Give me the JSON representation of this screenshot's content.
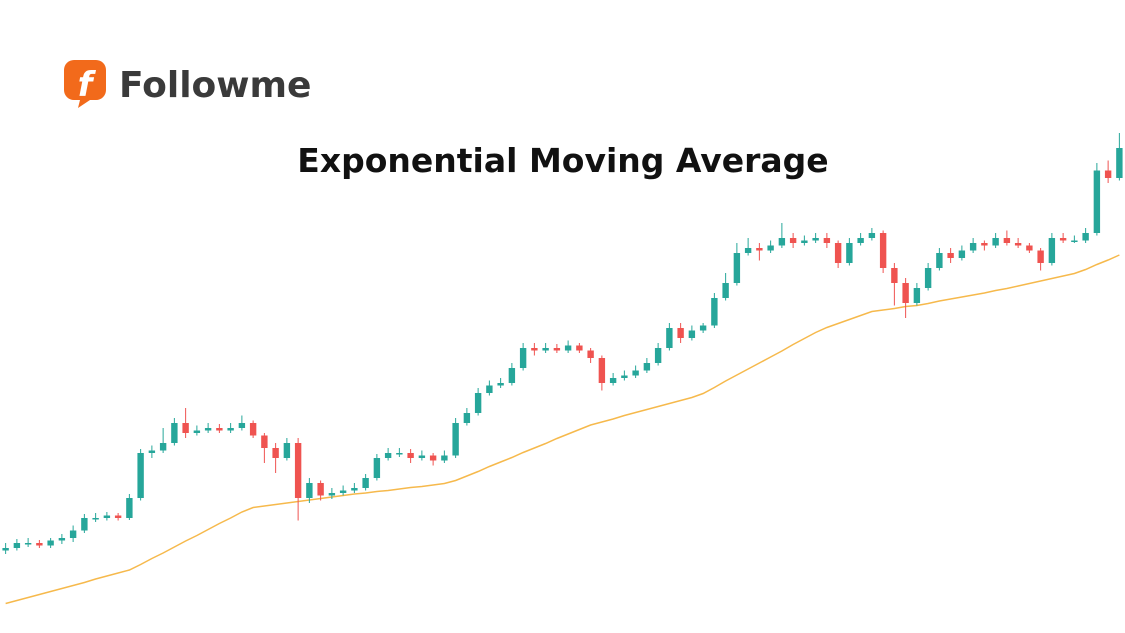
{
  "brand": {
    "mark": "f",
    "name": "Followme"
  },
  "chart_data": {
    "type": "candlestick",
    "title": "Exponential Moving Average",
    "ylim": [
      0,
      100
    ],
    "up_color": "#26a69a",
    "down_color": "#ef5350",
    "candles": [
      [
        16.5,
        18,
        15.8,
        17
      ],
      [
        17,
        18.8,
        16.5,
        18
      ],
      [
        18,
        19,
        17.2,
        18
      ],
      [
        18,
        18.6,
        17,
        17.5
      ],
      [
        17.5,
        19,
        17,
        18.5
      ],
      [
        18.5,
        19.8,
        17.8,
        19
      ],
      [
        19,
        21.5,
        18.2,
        20.5
      ],
      [
        20.5,
        23.8,
        20,
        23
      ],
      [
        23,
        24,
        22.2,
        23
      ],
      [
        23,
        24.2,
        22.5,
        23.5
      ],
      [
        23.5,
        24,
        22.5,
        23
      ],
      [
        23,
        27.8,
        22.6,
        27
      ],
      [
        27,
        36.8,
        26.5,
        36
      ],
      [
        36,
        37.5,
        35,
        36.5
      ],
      [
        36.5,
        41,
        36,
        38
      ],
      [
        38,
        43,
        37.5,
        42
      ],
      [
        42,
        45,
        39,
        40
      ],
      [
        40,
        41.5,
        39.5,
        40.5
      ],
      [
        40.5,
        42,
        40,
        41
      ],
      [
        41,
        41.8,
        40,
        40.5
      ],
      [
        40.5,
        42,
        40,
        41
      ],
      [
        41,
        43.5,
        40.5,
        42
      ],
      [
        42,
        42.5,
        39,
        39.5
      ],
      [
        39.5,
        40,
        34,
        37
      ],
      [
        37,
        38,
        32,
        35
      ],
      [
        35,
        39,
        34.5,
        38
      ],
      [
        38,
        39,
        22.5,
        27
      ],
      [
        27,
        31,
        26,
        30
      ],
      [
        30,
        30.5,
        26.5,
        27.5
      ],
      [
        27.5,
        29,
        26.8,
        28
      ],
      [
        28,
        29.5,
        27.5,
        28.5
      ],
      [
        28.5,
        30,
        28,
        29
      ],
      [
        29,
        31.8,
        28.5,
        31
      ],
      [
        31,
        35.8,
        30.5,
        35
      ],
      [
        35,
        37,
        34.5,
        36
      ],
      [
        36,
        37,
        35.2,
        36
      ],
      [
        36,
        36.8,
        34,
        35
      ],
      [
        35,
        36.5,
        34.5,
        35.5
      ],
      [
        35.5,
        36,
        33.5,
        34.5
      ],
      [
        34.5,
        36.5,
        34,
        35.5
      ],
      [
        35.5,
        43,
        35,
        42
      ],
      [
        42,
        45,
        41.5,
        44
      ],
      [
        44,
        49,
        43.5,
        48
      ],
      [
        48,
        50.5,
        47.5,
        49.5
      ],
      [
        49.5,
        51,
        49,
        50
      ],
      [
        50,
        54,
        49.5,
        53
      ],
      [
        53,
        58,
        52.5,
        57
      ],
      [
        57,
        58,
        55.5,
        56.5
      ],
      [
        56.5,
        58,
        56,
        57
      ],
      [
        57,
        57.8,
        56,
        56.5
      ],
      [
        56.5,
        58.5,
        56,
        57.5
      ],
      [
        57.5,
        58,
        56,
        56.5
      ],
      [
        56.5,
        57,
        54,
        55
      ],
      [
        55,
        55.5,
        48.5,
        50
      ],
      [
        50,
        52,
        49.5,
        51
      ],
      [
        51,
        52.5,
        50.5,
        51.5
      ],
      [
        51.5,
        53.5,
        51,
        52.5
      ],
      [
        52.5,
        55,
        52,
        54
      ],
      [
        54,
        58,
        53.5,
        57
      ],
      [
        57,
        62,
        56.5,
        61
      ],
      [
        61,
        62,
        58,
        59
      ],
      [
        59,
        61.5,
        58.5,
        60.5
      ],
      [
        60.5,
        62,
        60,
        61.5
      ],
      [
        61.5,
        68,
        61,
        67
      ],
      [
        67,
        72,
        66.5,
        70
      ],
      [
        70,
        78,
        69.5,
        76
      ],
      [
        76,
        79,
        75.5,
        77
      ],
      [
        77,
        78,
        74.5,
        76.5
      ],
      [
        76.5,
        78.5,
        76,
        77.5
      ],
      [
        77.5,
        82,
        77,
        79
      ],
      [
        79,
        80,
        77,
        78
      ],
      [
        78,
        79.5,
        77.5,
        78.5
      ],
      [
        78.5,
        80,
        78,
        79
      ],
      [
        79,
        80,
        77,
        78
      ],
      [
        78,
        78.5,
        73,
        74
      ],
      [
        74,
        79,
        73.5,
        78
      ],
      [
        78,
        80,
        77.5,
        79
      ],
      [
        79,
        81,
        78.5,
        80
      ],
      [
        80,
        80.5,
        72,
        73
      ],
      [
        73,
        74,
        65.5,
        70
      ],
      [
        70,
        71,
        63,
        66
      ],
      [
        66,
        70,
        65.5,
        69
      ],
      [
        69,
        74,
        68.5,
        73
      ],
      [
        73,
        77,
        72.5,
        76
      ],
      [
        76,
        77,
        74,
        75
      ],
      [
        75,
        77.5,
        74.5,
        76.5
      ],
      [
        76.5,
        79,
        76,
        78
      ],
      [
        78,
        78.5,
        76.5,
        77.5
      ],
      [
        77.5,
        80,
        77,
        79
      ],
      [
        79,
        80.5,
        77.5,
        78
      ],
      [
        78,
        79,
        77,
        77.5
      ],
      [
        77.5,
        78,
        76,
        76.5
      ],
      [
        76.5,
        77,
        72.5,
        74
      ],
      [
        74,
        80,
        73.5,
        79
      ],
      [
        79,
        80,
        78,
        78.5
      ],
      [
        78.5,
        79.5,
        78,
        78.5
      ],
      [
        78.5,
        81,
        78,
        80
      ],
      [
        80,
        94,
        79.5,
        92.5
      ],
      [
        92.5,
        94.5,
        90,
        91
      ],
      [
        91,
        100,
        90.5,
        97
      ]
    ],
    "ema": {
      "color": "#f6b94c",
      "values": [
        5.9,
        6.5,
        7.1,
        7.7,
        8.3,
        8.9,
        9.5,
        10.1,
        10.8,
        11.4,
        12.0,
        12.6,
        13.7,
        14.9,
        16.0,
        17.2,
        18.4,
        19.5,
        20.7,
        21.9,
        23.0,
        24.2,
        25.1,
        25.4,
        25.7,
        26.0,
        26.3,
        26.6,
        26.9,
        27.2,
        27.5,
        27.8,
        28.0,
        28.3,
        28.5,
        28.8,
        29.1,
        29.3,
        29.6,
        29.9,
        30.5,
        31.4,
        32.3,
        33.3,
        34.2,
        35.1,
        36.1,
        37.0,
        37.9,
        38.9,
        39.8,
        40.7,
        41.6,
        42.2,
        42.8,
        43.5,
        44.1,
        44.7,
        45.3,
        45.9,
        46.5,
        47.1,
        47.9,
        49.1,
        50.4,
        51.6,
        52.8,
        54.0,
        55.2,
        56.4,
        57.7,
        58.9,
        60.1,
        61.1,
        61.9,
        62.7,
        63.5,
        64.3,
        64.6,
        64.9,
        65.3,
        65.5,
        65.9,
        66.4,
        66.8,
        67.2,
        67.6,
        68.0,
        68.5,
        68.9,
        69.4,
        69.9,
        70.4,
        70.9,
        71.4,
        71.9,
        72.7,
        73.7,
        74.6,
        75.6
      ]
    }
  }
}
